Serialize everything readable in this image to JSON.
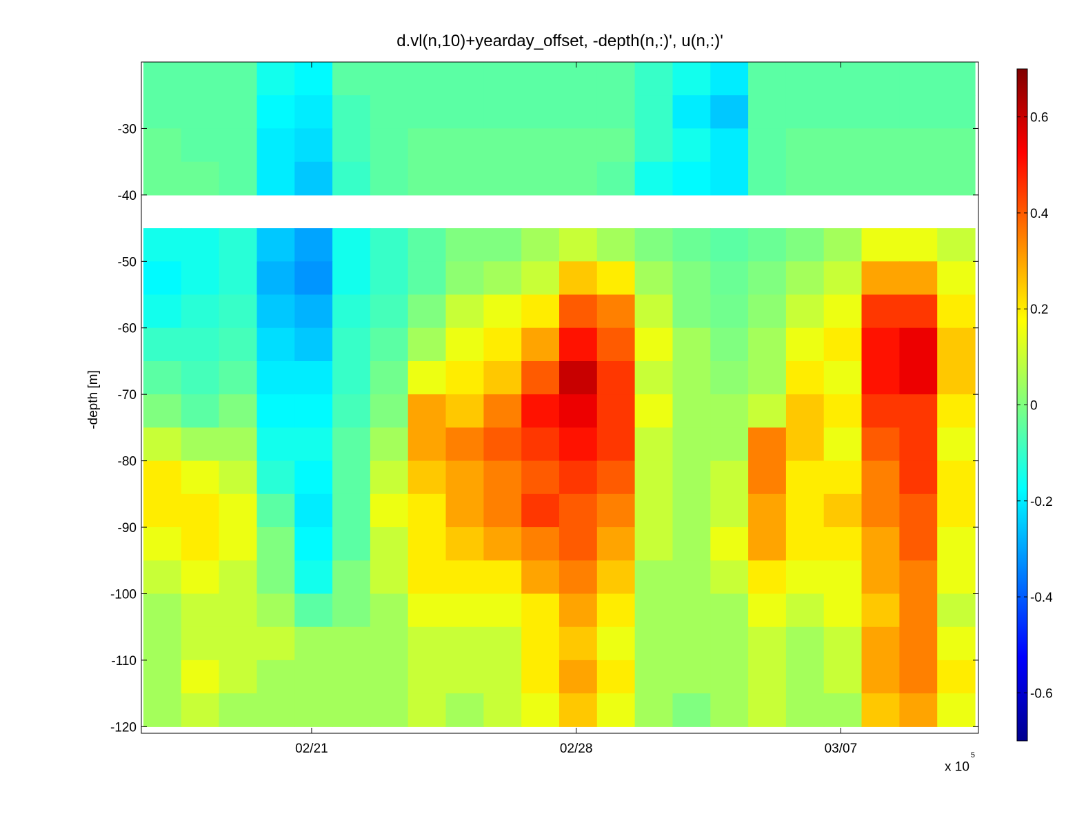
{
  "chart_data": {
    "type": "heatmap",
    "title": "d.vl(n,10)+yearday_offset, -depth(n,:)', u(n,:)'",
    "ylabel": "-depth [m]",
    "xlabel": "",
    "x_multiplier": "x 10",
    "x_multiplier_exponent": "5",
    "xticks": [
      "02/21",
      "02/28",
      "03/07"
    ],
    "yticks": [
      -30,
      -40,
      -50,
      -60,
      -70,
      -80,
      -90,
      -100,
      -110,
      -120
    ],
    "ylim": [
      -121,
      -20
    ],
    "colormap": "jet",
    "clim": [
      -0.7,
      0.7
    ],
    "colorbar_ticks": [
      0.6,
      0.4,
      0.2,
      0,
      -0.2,
      -0.4,
      -0.6
    ],
    "data_gap_depth": [
      -41,
      -45
    ],
    "depth_bins": [
      -22.5,
      -27.5,
      -32.5,
      -37.5,
      -42.5,
      -47.5,
      -52.5,
      -57.5,
      -62.5,
      -67.5,
      -72.5,
      -77.5,
      -82.5,
      -87.5,
      -92.5,
      -97.5,
      -102.5,
      -107.5,
      -112.5,
      -117.5
    ],
    "time_bins": [
      "02/17",
      "02/18",
      "02/19",
      "02/20",
      "02/21",
      "02/22",
      "02/23",
      "02/24",
      "02/25",
      "02/26",
      "02/27",
      "02/28",
      "03/01",
      "03/02",
      "03/03",
      "03/04",
      "03/05",
      "03/06",
      "03/07",
      "03/08",
      "03/09",
      "03/10"
    ],
    "values": [
      [
        -0.05,
        -0.05,
        -0.05,
        -0.15,
        -0.18,
        -0.05,
        -0.05,
        -0.05,
        -0.05,
        -0.05,
        -0.05,
        -0.05,
        -0.05,
        -0.1,
        -0.15,
        -0.2,
        -0.05,
        -0.05,
        -0.05,
        -0.05,
        -0.05,
        -0.05
      ],
      [
        -0.05,
        -0.05,
        -0.05,
        -0.18,
        -0.2,
        -0.08,
        -0.05,
        -0.05,
        -0.05,
        -0.05,
        -0.05,
        -0.05,
        -0.05,
        -0.1,
        -0.2,
        -0.25,
        -0.05,
        -0.05,
        -0.05,
        -0.05,
        -0.05,
        -0.05
      ],
      [
        -0.03,
        -0.05,
        -0.05,
        -0.2,
        -0.22,
        -0.08,
        -0.05,
        -0.03,
        -0.03,
        -0.03,
        -0.03,
        -0.03,
        -0.03,
        -0.1,
        -0.15,
        -0.2,
        -0.05,
        -0.03,
        -0.03,
        -0.03,
        -0.03,
        -0.03
      ],
      [
        -0.03,
        -0.03,
        -0.05,
        -0.2,
        -0.25,
        -0.1,
        -0.05,
        -0.03,
        -0.03,
        -0.03,
        -0.03,
        -0.03,
        -0.05,
        -0.15,
        -0.18,
        -0.2,
        -0.05,
        -0.03,
        -0.03,
        -0.03,
        -0.03,
        -0.03
      ],
      [
        null,
        null,
        null,
        null,
        null,
        null,
        null,
        null,
        null,
        null,
        null,
        null,
        null,
        null,
        null,
        null,
        null,
        null,
        null,
        null,
        null,
        null
      ],
      [
        -0.15,
        -0.15,
        -0.12,
        -0.25,
        -0.3,
        -0.15,
        -0.1,
        -0.05,
        0.0,
        0.0,
        0.05,
        0.1,
        0.05,
        0.0,
        -0.03,
        -0.05,
        -0.03,
        0.0,
        0.05,
        0.15,
        0.15,
        0.1
      ],
      [
        -0.18,
        -0.15,
        -0.12,
        -0.28,
        -0.32,
        -0.15,
        -0.1,
        -0.05,
        0.02,
        0.05,
        0.1,
        0.25,
        0.2,
        0.05,
        0.0,
        -0.03,
        0.0,
        0.05,
        0.1,
        0.3,
        0.3,
        0.15
      ],
      [
        -0.15,
        -0.12,
        -0.1,
        -0.25,
        -0.28,
        -0.12,
        -0.08,
        0.0,
        0.1,
        0.15,
        0.2,
        0.4,
        0.35,
        0.1,
        0.0,
        -0.02,
        0.02,
        0.1,
        0.15,
        0.45,
        0.45,
        0.2
      ],
      [
        -0.1,
        -0.1,
        -0.08,
        -0.22,
        -0.25,
        -0.1,
        -0.05,
        0.05,
        0.15,
        0.2,
        0.3,
        0.5,
        0.4,
        0.15,
        0.05,
        0.0,
        0.05,
        0.15,
        0.2,
        0.5,
        0.55,
        0.25
      ],
      [
        -0.05,
        -0.08,
        -0.05,
        -0.2,
        -0.2,
        -0.1,
        -0.02,
        0.15,
        0.2,
        0.25,
        0.4,
        0.6,
        0.45,
        0.1,
        0.05,
        0.02,
        0.05,
        0.2,
        0.15,
        0.5,
        0.55,
        0.25
      ],
      [
        0.0,
        -0.05,
        0.0,
        -0.18,
        -0.18,
        -0.08,
        0.0,
        0.3,
        0.25,
        0.35,
        0.5,
        0.55,
        0.45,
        0.15,
        0.05,
        0.05,
        0.1,
        0.25,
        0.2,
        0.45,
        0.45,
        0.2
      ],
      [
        0.1,
        0.05,
        0.05,
        -0.15,
        -0.15,
        -0.05,
        0.05,
        0.3,
        0.35,
        0.4,
        0.45,
        0.5,
        0.45,
        0.1,
        0.05,
        0.05,
        0.35,
        0.25,
        0.15,
        0.4,
        0.45,
        0.15
      ],
      [
        0.2,
        0.15,
        0.1,
        -0.12,
        -0.18,
        -0.05,
        0.1,
        0.25,
        0.3,
        0.35,
        0.4,
        0.45,
        0.4,
        0.1,
        0.05,
        0.1,
        0.35,
        0.2,
        0.2,
        0.35,
        0.45,
        0.2
      ],
      [
        0.2,
        0.2,
        0.15,
        -0.05,
        -0.2,
        -0.05,
        0.15,
        0.2,
        0.3,
        0.35,
        0.45,
        0.4,
        0.35,
        0.1,
        0.05,
        0.1,
        0.3,
        0.2,
        0.25,
        0.35,
        0.4,
        0.2
      ],
      [
        0.15,
        0.2,
        0.15,
        0.0,
        -0.18,
        -0.05,
        0.1,
        0.2,
        0.25,
        0.3,
        0.35,
        0.4,
        0.3,
        0.1,
        0.05,
        0.15,
        0.3,
        0.2,
        0.2,
        0.3,
        0.4,
        0.15
      ],
      [
        0.1,
        0.15,
        0.1,
        0.0,
        -0.15,
        0.0,
        0.1,
        0.2,
        0.2,
        0.2,
        0.3,
        0.35,
        0.25,
        0.05,
        0.05,
        0.1,
        0.2,
        0.15,
        0.15,
        0.3,
        0.35,
        0.15
      ],
      [
        0.05,
        0.1,
        0.1,
        0.05,
        -0.05,
        0.0,
        0.05,
        0.15,
        0.15,
        0.15,
        0.2,
        0.3,
        0.2,
        0.05,
        0.05,
        0.05,
        0.15,
        0.1,
        0.15,
        0.25,
        0.35,
        0.1
      ],
      [
        0.05,
        0.1,
        0.1,
        0.1,
        0.05,
        0.05,
        0.05,
        0.1,
        0.1,
        0.1,
        0.2,
        0.25,
        0.15,
        0.05,
        0.05,
        0.05,
        0.1,
        0.05,
        0.1,
        0.3,
        0.35,
        0.15
      ],
      [
        0.05,
        0.15,
        0.1,
        0.05,
        0.05,
        0.05,
        0.05,
        0.1,
        0.1,
        0.1,
        0.2,
        0.3,
        0.2,
        0.05,
        0.05,
        0.05,
        0.1,
        0.05,
        0.1,
        0.3,
        0.35,
        0.2
      ],
      [
        0.05,
        0.1,
        0.05,
        0.05,
        0.05,
        0.05,
        0.05,
        0.1,
        0.05,
        0.1,
        0.15,
        0.25,
        0.15,
        0.05,
        0.0,
        0.05,
        0.1,
        0.05,
        0.05,
        0.25,
        0.3,
        0.15
      ]
    ]
  }
}
